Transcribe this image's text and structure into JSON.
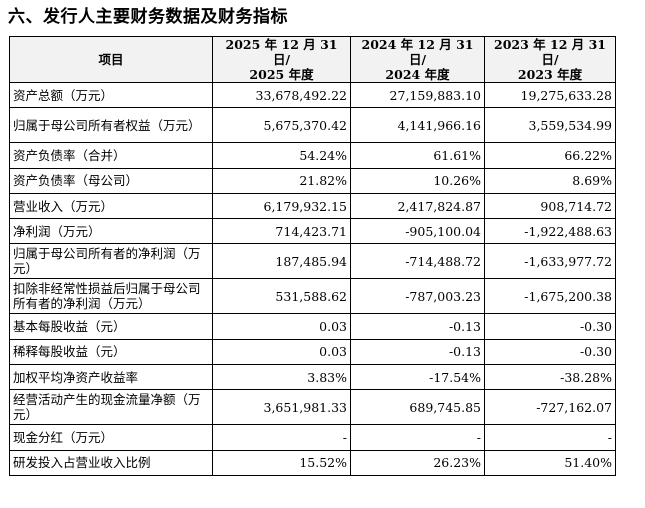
{
  "section_title": "六、发行人主要财务数据及财务指标",
  "headers": {
    "item": "项目",
    "col1_line1": "2025 年 12 月 31 日/",
    "col1_line2": "2025 年度",
    "col2_line1": "2024 年 12 月 31 日/",
    "col2_line2": "2024 年度",
    "col3_line1": "2023 年 12 月 31 日/",
    "col3_line2": "2023 年度"
  },
  "rows": [
    {
      "label": "资产总额（万元）",
      "v2025": "33,678,492.22",
      "v2024": "27,159,883.10",
      "v2023": "19,275,633.28"
    },
    {
      "label": "归属于母公司所有者权益（万元）",
      "v2025": "5,675,370.42",
      "v2024": "4,141,966.16",
      "v2023": "3,559,534.99"
    },
    {
      "label": "资产负债率（合并）",
      "v2025": "54.24%",
      "v2024": "61.61%",
      "v2023": "66.22%"
    },
    {
      "label": "资产负债率（母公司）",
      "v2025": "21.82%",
      "v2024": "10.26%",
      "v2023": "8.69%"
    },
    {
      "label": "营业收入（万元）",
      "v2025": "6,179,932.15",
      "v2024": "2,417,824.87",
      "v2023": "908,714.72"
    },
    {
      "label": "净利润（万元）",
      "v2025": "714,423.71",
      "v2024": "-905,100.04",
      "v2023": "-1,922,488.63"
    },
    {
      "label": "归属于母公司所有者的净利润（万元）",
      "v2025": "187,485.94",
      "v2024": "-714,488.72",
      "v2023": "-1,633,977.72"
    },
    {
      "label": "扣除非经常性损益后归属于母公司所有者的净利润（万元）",
      "v2025": "531,588.62",
      "v2024": "-787,003.23",
      "v2023": "-1,675,200.38"
    },
    {
      "label": "基本每股收益（元）",
      "v2025": "0.03",
      "v2024": "-0.13",
      "v2023": "-0.30"
    },
    {
      "label": "稀释每股收益（元）",
      "v2025": "0.03",
      "v2024": "-0.13",
      "v2023": "-0.30"
    },
    {
      "label": "加权平均净资产收益率",
      "v2025": "3.83%",
      "v2024": "-17.54%",
      "v2023": "-38.28%"
    },
    {
      "label": "经营活动产生的现金流量净额（万元）",
      "v2025": "3,651,981.33",
      "v2024": "689,745.85",
      "v2023": "-727,162.07"
    },
    {
      "label": "现金分红（万元）",
      "v2025": "-",
      "v2024": "-",
      "v2023": "-"
    },
    {
      "label": "研发投入占营业收入比例",
      "v2025": "15.52%",
      "v2024": "26.23%",
      "v2023": "51.40%"
    }
  ]
}
